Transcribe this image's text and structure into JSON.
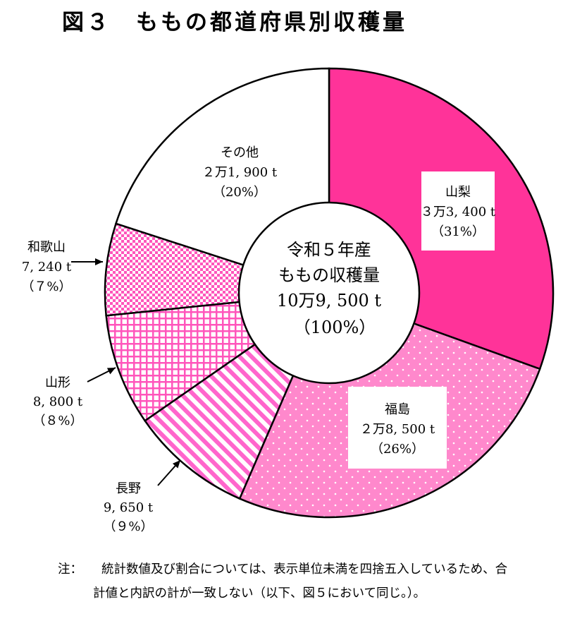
{
  "title": "図３　ももの都道府県別収穫量",
  "chart_data": {
    "type": "pie",
    "center": {
      "line1": "令和５年産",
      "line2": "ももの収穫量",
      "line3": "10万9, 500 t",
      "line4": "（100%）"
    },
    "slices": [
      {
        "name": "山梨",
        "value": 33400,
        "value_label": "３万3, 400 t",
        "pct_label": "（31%）",
        "color": "#ff3399"
      },
      {
        "name": "福島",
        "value": 28500,
        "value_label": "２万8, 500 t",
        "pct_label": "（26%）",
        "color": "#ff88cc"
      },
      {
        "name": "長野",
        "value": 9650,
        "value_label": "9, 650 t",
        "pct_label": "（９%）",
        "color": "#ff66cc"
      },
      {
        "name": "山形",
        "value": 8800,
        "value_label": "8, 800 t",
        "pct_label": "（８%）",
        "color": "#ff66cc"
      },
      {
        "name": "和歌山",
        "value": 7240,
        "value_label": "7, 240 t",
        "pct_label": "（７%）",
        "color": "#ff66cc"
      },
      {
        "name": "その他",
        "value": 21900,
        "value_label": "２万1, 900 t",
        "pct_label": "（20%）",
        "color": "#ffffff"
      }
    ]
  },
  "note": {
    "label": "注：",
    "text": "統計数値及び割合については、表示単位未満を四捨五入しているため、合計値と内訳の計が一致しない（以下、図５において同じ。）。"
  }
}
